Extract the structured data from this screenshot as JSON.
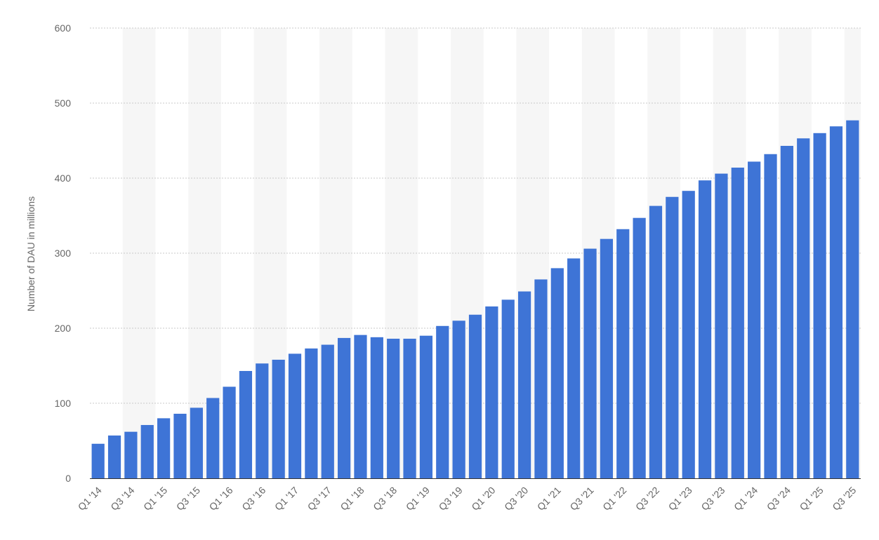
{
  "chart_data": {
    "type": "bar",
    "ylabel": "Number of DAU in millions",
    "xlabel": "",
    "ylim": [
      0,
      600
    ],
    "yticks": [
      "0",
      "100",
      "200",
      "300",
      "400",
      "500",
      "600"
    ],
    "grid": true,
    "legend": "none",
    "bar_color": "#3e74d6",
    "band_color": "#f6f6f6",
    "grid_color": "#c8c8c8",
    "categories": [
      "Q1 '14",
      "Q2 '14",
      "Q3 '14",
      "Q4 '14",
      "Q1 '15",
      "Q2 '15",
      "Q3 '15",
      "Q4 '15",
      "Q1 '16",
      "Q2 '16",
      "Q3 '16",
      "Q4 '16",
      "Q1 '17",
      "Q2 '17",
      "Q3 '17",
      "Q4 '17",
      "Q1 '18",
      "Q2 '18",
      "Q3 '18",
      "Q4 '18",
      "Q1 '19",
      "Q2 '19",
      "Q3 '19",
      "Q4 '19",
      "Q1 '20",
      "Q2 '20",
      "Q3 '20",
      "Q4 '20",
      "Q1 '21",
      "Q2 '21",
      "Q3 '21",
      "Q4 '21",
      "Q1 '22",
      "Q2 '22",
      "Q3 '22",
      "Q4 '22",
      "Q1 '23",
      "Q2 '23",
      "Q3 '23",
      "Q4 '23",
      "Q1 '24",
      "Q2 '24",
      "Q3 '24",
      "Q4 '24",
      "Q1 '25",
      "Q2 '25",
      "Q3 '25"
    ],
    "x_tick_labels": [
      "Q1 '14",
      "Q3 '14",
      "Q1 '15",
      "Q3 '15",
      "Q1 '16",
      "Q3 '16",
      "Q1 '17",
      "Q3 '17",
      "Q1 '18",
      "Q3 '18",
      "Q1 '19",
      "Q3 '19",
      "Q1 '20",
      "Q3 '20",
      "Q1 '21",
      "Q3 '21",
      "Q1 '22",
      "Q3 '22",
      "Q1 '23",
      "Q3 '23",
      "Q1 '24",
      "Q3 '24",
      "Q1 '25",
      "Q3 '25"
    ],
    "values": [
      46,
      57,
      62,
      71,
      80,
      86,
      94,
      107,
      122,
      143,
      153,
      158,
      166,
      173,
      178,
      187,
      191,
      188,
      186,
      186,
      190,
      203,
      210,
      218,
      229,
      238,
      249,
      265,
      280,
      293,
      306,
      319,
      332,
      347,
      363,
      375,
      383,
      397,
      406,
      414,
      422,
      432,
      443,
      453,
      460,
      469,
      477
    ]
  }
}
